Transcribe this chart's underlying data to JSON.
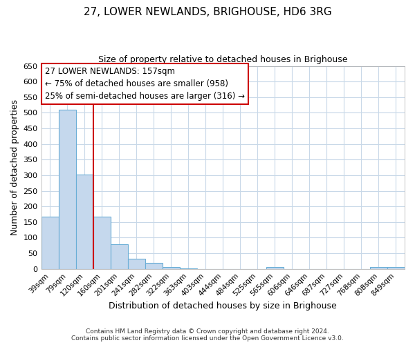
{
  "title": "27, LOWER NEWLANDS, BRIGHOUSE, HD6 3RG",
  "subtitle": "Size of property relative to detached houses in Brighouse",
  "xlabel": "Distribution of detached houses by size in Brighouse",
  "ylabel": "Number of detached properties",
  "bar_labels": [
    "39sqm",
    "79sqm",
    "120sqm",
    "160sqm",
    "201sqm",
    "241sqm",
    "282sqm",
    "322sqm",
    "363sqm",
    "403sqm",
    "444sqm",
    "484sqm",
    "525sqm",
    "565sqm",
    "606sqm",
    "646sqm",
    "687sqm",
    "727sqm",
    "768sqm",
    "808sqm",
    "849sqm"
  ],
  "bar_values": [
    168,
    510,
    302,
    168,
    78,
    32,
    20,
    5,
    1,
    0,
    0,
    0,
    0,
    5,
    0,
    0,
    0,
    0,
    0,
    5,
    5
  ],
  "bar_color": "#c5d8ed",
  "bar_edge_color": "#6aaed6",
  "vline_color": "#cc0000",
  "vline_x_index": 2.5,
  "ylim": [
    0,
    650
  ],
  "yticks": [
    0,
    50,
    100,
    150,
    200,
    250,
    300,
    350,
    400,
    450,
    500,
    550,
    600,
    650
  ],
  "annotation_title": "27 LOWER NEWLANDS: 157sqm",
  "annotation_line1": "← 75% of detached houses are smaller (958)",
  "annotation_line2": "25% of semi-detached houses are larger (316) →",
  "annotation_box_color": "#ffffff",
  "annotation_box_edge": "#cc0000",
  "footer_line1": "Contains HM Land Registry data © Crown copyright and database right 2024.",
  "footer_line2": "Contains public sector information licensed under the Open Government Licence v3.0.",
  "background_color": "#ffffff",
  "grid_color": "#c8d8e8"
}
